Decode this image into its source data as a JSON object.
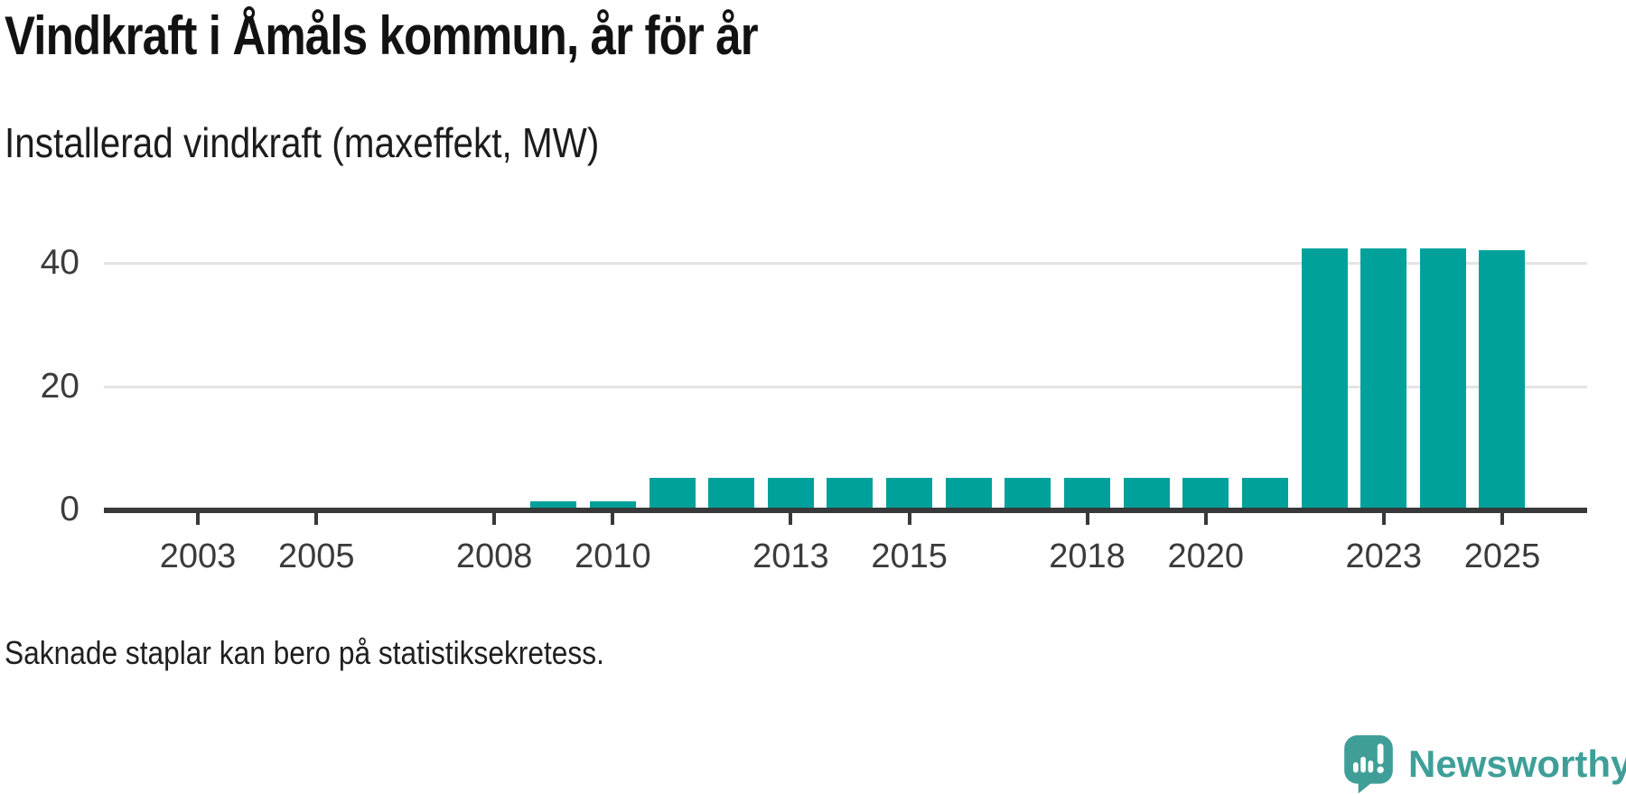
{
  "chart_data": {
    "type": "bar",
    "title": "Vindkraft i Åmåls kommun, år för år",
    "subtitle": "Installerad vindkraft (maxeffekt, MW)",
    "note": "Saknade staplar kan bero på statistiksekretess.",
    "unit": "MW",
    "x": [
      2003,
      2004,
      2005,
      2006,
      2007,
      2008,
      2009,
      2010,
      2011,
      2012,
      2013,
      2014,
      2015,
      2016,
      2017,
      2018,
      2019,
      2020,
      2021,
      2022,
      2023,
      2024,
      2025
    ],
    "values": [
      0,
      0,
      0,
      0,
      0,
      0,
      1.3,
      1.3,
      5.1,
      5.1,
      5.1,
      5.1,
      5.1,
      5.1,
      5.1,
      5.1,
      5.1,
      5.1,
      5.1,
      42.4,
      42.4,
      42.4,
      42.1
    ],
    "x_ticks": [
      2003,
      2005,
      2008,
      2010,
      2013,
      2015,
      2018,
      2020,
      2023,
      2025
    ],
    "y_ticks": [
      0,
      20,
      40
    ],
    "gridlines": [
      20,
      40
    ],
    "ylim": [
      0,
      49
    ],
    "grid": "horizontal",
    "legend": "none"
  },
  "branding": {
    "wordmark": "Newsworthy",
    "logo_icon": "speech-bubble-with-bar-chart-and-exclamation"
  },
  "colors": {
    "bar": "#00a19a",
    "axis": "#37393a",
    "grid": "#e4e4e4",
    "tick_label": "#3b3b3b",
    "brand": "#3f9f98"
  }
}
